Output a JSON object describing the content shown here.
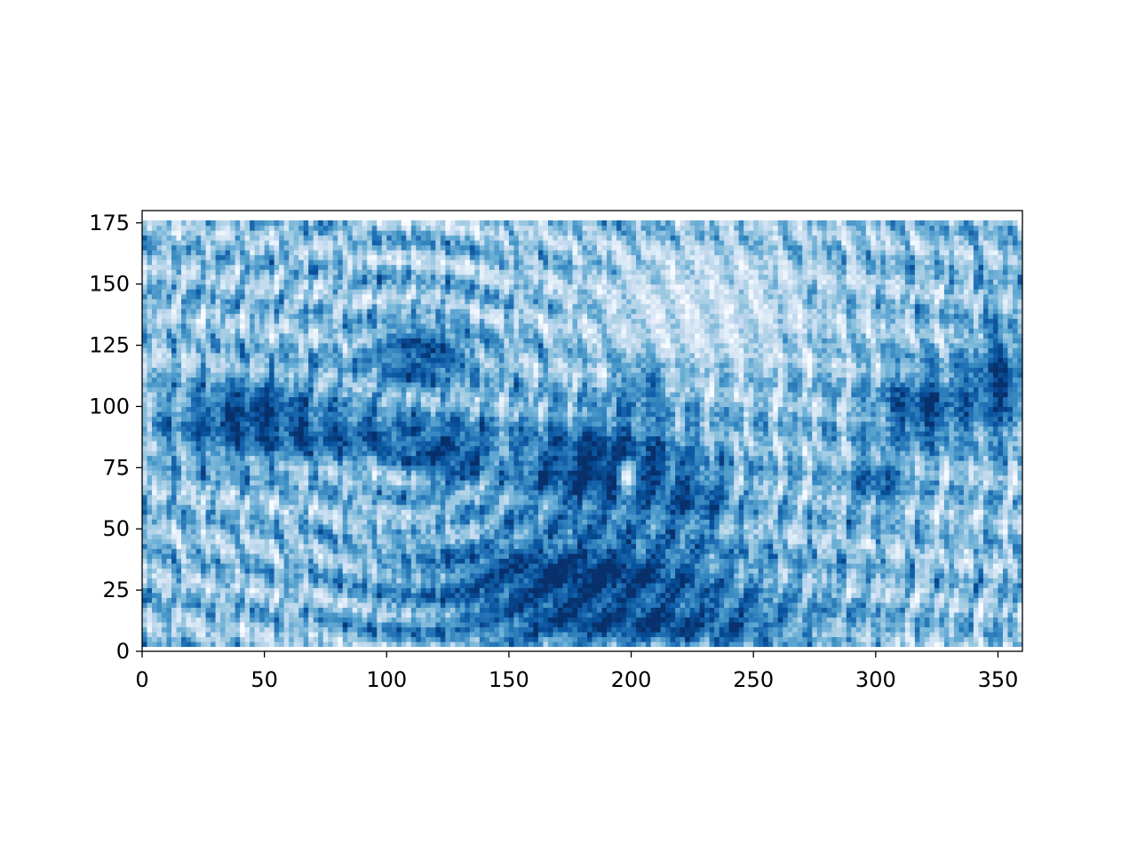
{
  "chart_data": {
    "type": "heatmap",
    "title": "",
    "xlabel": "",
    "ylabel": "",
    "xlim": [
      0,
      360
    ],
    "ylim": [
      0,
      180
    ],
    "x_ticks": [
      0,
      50,
      100,
      150,
      200,
      250,
      300,
      350
    ],
    "y_ticks": [
      0,
      25,
      50,
      75,
      100,
      125,
      150,
      175
    ],
    "x_tick_labels": [
      "0",
      "50",
      "100",
      "150",
      "200",
      "250",
      "300",
      "350"
    ],
    "y_tick_labels": [
      "0",
      "25",
      "50",
      "75",
      "100",
      "125",
      "150",
      "175"
    ],
    "data_extent": {
      "x": [
        0,
        360
      ],
      "y": [
        2,
        176
      ]
    },
    "colormap": "Blues",
    "colormap_stops": [
      "#f7fbff",
      "#deebf7",
      "#c6dbef",
      "#9ecae1",
      "#6baed6",
      "#4292c6",
      "#2171b5",
      "#08519c",
      "#08306b"
    ],
    "grid": false,
    "legend": "none",
    "features": [
      {
        "label": "dark blob west",
        "x": 45,
        "y": 95,
        "rx": 38,
        "ry": 18,
        "value": 0.95
      },
      {
        "label": "dark band west",
        "x": 85,
        "y": 88,
        "rx": 55,
        "ry": 10,
        "value": 0.85
      },
      {
        "label": "dark swirl 110",
        "x": 115,
        "y": 120,
        "rx": 25,
        "ry": 15,
        "value": 0.9
      },
      {
        "label": "dark ring 125",
        "x": 125,
        "y": 80,
        "rx": 20,
        "ry": 15,
        "value": 0.92
      },
      {
        "label": "dark mass center",
        "x": 190,
        "y": 75,
        "rx": 45,
        "ry": 25,
        "value": 1.0
      },
      {
        "label": "dark basin south",
        "x": 180,
        "y": 30,
        "rx": 75,
        "ry": 22,
        "value": 1.0
      },
      {
        "label": "dark floor south",
        "x": 200,
        "y": 12,
        "rx": 80,
        "ry": 10,
        "value": 0.95
      },
      {
        "label": "dark blob 225",
        "x": 225,
        "y": 62,
        "rx": 18,
        "ry": 12,
        "value": 0.88
      },
      {
        "label": "dark plume 205",
        "x": 205,
        "y": 110,
        "rx": 12,
        "ry": 15,
        "value": 0.85
      },
      {
        "label": "dark blob east",
        "x": 320,
        "y": 100,
        "rx": 25,
        "ry": 18,
        "value": 0.9
      },
      {
        "label": "dark blob east edge",
        "x": 350,
        "y": 110,
        "rx": 15,
        "ry": 25,
        "value": 0.9
      },
      {
        "label": "dark blob 300",
        "x": 300,
        "y": 70,
        "rx": 15,
        "ry": 12,
        "value": 0.82
      },
      {
        "label": "pale streaks north",
        "x": 230,
        "y": 140,
        "rx": 60,
        "ry": 30,
        "value": 0.2
      },
      {
        "label": "pale spot center",
        "x": 198,
        "y": 72,
        "rx": 4,
        "ry": 8,
        "value": 0.05
      }
    ]
  }
}
